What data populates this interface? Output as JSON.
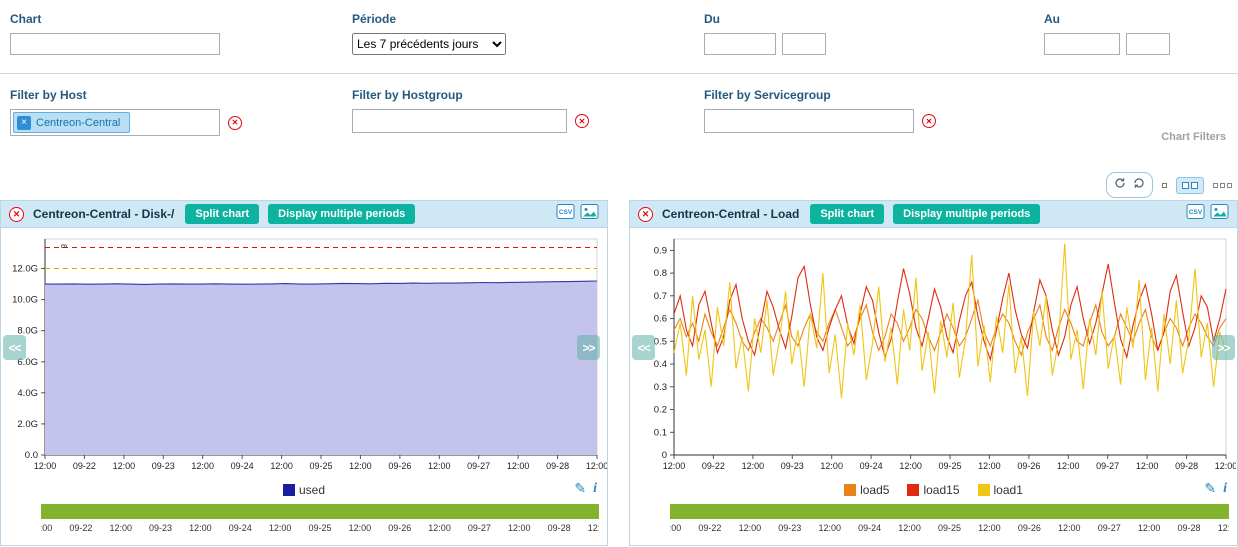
{
  "filters": {
    "chart": {
      "label": "Chart",
      "value": ""
    },
    "periode": {
      "label": "Période",
      "value": "Les 7 précédents jours"
    },
    "du": {
      "label": "Du",
      "date_value": "",
      "time_value": ""
    },
    "au": {
      "label": "Au",
      "date_value": "",
      "time_value": ""
    },
    "host": {
      "label": "Filter by Host",
      "tag": "Centreon-Central"
    },
    "hostgroup": {
      "label": "Filter by Hostgroup",
      "value": ""
    },
    "servicegroup": {
      "label": "Filter by Servicegroup",
      "value": ""
    },
    "section_label": "Chart Filters"
  },
  "icons": {
    "clear_x": "✕",
    "tag_x": "×",
    "paddle_left": "<<",
    "paddle_right": ">>",
    "pencil": "✎",
    "info": "i",
    "csv_label": "CSV"
  },
  "panels": [
    {
      "title": "Centreon-Central - Disk-/",
      "split_label": "Split chart",
      "multi_label": "Display multiple periods"
    },
    {
      "title": "Centreon-Central - Load",
      "split_label": "Split chart",
      "multi_label": "Display multiple periods"
    }
  ],
  "chart_data": [
    {
      "type": "area",
      "title": "Centreon-Central - Disk-/",
      "xlabel": "",
      "ylabel": "",
      "ylim": [
        0,
        13.9
      ],
      "yticks": {
        "values": [
          0,
          2,
          4,
          6,
          8,
          10,
          12
        ],
        "labels": [
          "0.0",
          "2.0G",
          "4.0G",
          "6.0G",
          "8.0G",
          "10.0G",
          "12.0G"
        ]
      },
      "x_labels": [
        "12:00",
        "09-22",
        "12:00",
        "09-23",
        "12:00",
        "09-24",
        "12:00",
        "09-25",
        "12:00",
        "09-26",
        "12:00",
        "09-27",
        "12:00",
        "09-28",
        "12:00"
      ],
      "annotation": "8",
      "thresholds": [
        {
          "name": "warning",
          "value": 12.0,
          "color": "#e8a000"
        },
        {
          "name": "critical",
          "value": 13.35,
          "color": "#e01010"
        }
      ],
      "series": [
        {
          "name": "used",
          "color": "#3434b4",
          "fill": "#c3c3ec",
          "values": [
            11.0,
            11.0,
            11.01,
            10.99,
            11.0,
            11.02,
            11.0,
            10.98,
            11.0,
            11.01,
            11.0,
            11.0,
            11.02,
            11.0,
            10.99,
            11.0,
            11.01,
            11.03,
            11.0,
            11.0,
            11.02,
            11.04,
            11.03,
            11.02,
            11.05,
            11.04,
            11.06,
            11.05,
            11.07,
            11.06,
            11.08,
            11.1,
            11.09,
            11.11,
            11.12,
            11.14,
            11.15,
            11.16,
            11.18,
            11.2
          ]
        }
      ],
      "legend": [
        {
          "label": "used",
          "color": "#1c1c9e"
        }
      ]
    },
    {
      "type": "line",
      "title": "Centreon-Central - Load",
      "xlabel": "",
      "ylabel": "",
      "ylim": [
        0,
        0.95
      ],
      "yticks": {
        "values": [
          0,
          0.1,
          0.2,
          0.3,
          0.4,
          0.5,
          0.6,
          0.7,
          0.8,
          0.9
        ],
        "labels": [
          "0",
          "0.1",
          "0.2",
          "0.3",
          "0.4",
          "0.5",
          "0.6",
          "0.7",
          "0.8",
          "0.9"
        ]
      },
      "x_labels": [
        "12:00",
        "09-22",
        "12:00",
        "09-23",
        "12:00",
        "09-24",
        "12:00",
        "09-25",
        "12:00",
        "09-26",
        "12:00",
        "09-27",
        "12:00",
        "09-28",
        "12:00"
      ],
      "series": [
        {
          "name": "load5",
          "color": "#e8831b",
          "values": [
            0.55,
            0.6,
            0.52,
            0.58,
            0.5,
            0.62,
            0.54,
            0.48,
            0.56,
            0.64,
            0.58,
            0.5,
            0.46,
            0.54,
            0.6,
            0.56,
            0.5,
            0.58,
            0.66,
            0.52,
            0.48,
            0.56,
            0.62,
            0.54,
            0.5,
            0.58,
            0.64,
            0.56,
            0.48,
            0.52,
            0.6,
            0.66,
            0.54,
            0.46,
            0.52,
            0.62,
            0.58,
            0.5,
            0.56,
            0.64,
            0.6,
            0.52,
            0.46,
            0.54,
            0.62,
            0.56,
            0.48,
            0.52,
            0.6,
            0.68,
            0.54,
            0.48,
            0.56,
            0.62,
            0.58,
            0.5,
            0.44,
            0.54,
            0.6,
            0.66,
            0.52,
            0.46,
            0.56,
            0.64,
            0.58,
            0.5,
            0.48,
            0.58,
            0.66,
            0.54,
            0.48,
            0.52,
            0.62,
            0.56,
            0.5,
            0.58,
            0.64,
            0.52,
            0.46,
            0.54,
            0.6,
            0.56,
            0.48,
            0.56,
            0.62,
            0.58,
            0.52,
            0.48,
            0.56,
            0.6
          ]
        },
        {
          "name": "load15",
          "color": "#e02a10",
          "values": [
            0.62,
            0.7,
            0.55,
            0.48,
            0.66,
            0.72,
            0.58,
            0.45,
            0.52,
            0.68,
            0.75,
            0.6,
            0.5,
            0.44,
            0.58,
            0.72,
            0.65,
            0.55,
            0.47,
            0.61,
            0.78,
            0.83,
            0.66,
            0.52,
            0.46,
            0.56,
            0.64,
            0.7,
            0.57,
            0.49,
            0.62,
            0.74,
            0.68,
            0.54,
            0.43,
            0.51,
            0.67,
            0.82,
            0.71,
            0.56,
            0.48,
            0.6,
            0.73,
            0.65,
            0.52,
            0.45,
            0.59,
            0.7,
            0.76,
            0.61,
            0.5,
            0.42,
            0.55,
            0.69,
            0.8,
            0.64,
            0.53,
            0.47,
            0.63,
            0.77,
            0.7,
            0.55,
            0.44,
            0.52,
            0.66,
            0.74,
            0.6,
            0.49,
            0.58,
            0.71,
            0.84,
            0.67,
            0.51,
            0.43,
            0.57,
            0.68,
            0.75,
            0.62,
            0.46,
            0.54,
            0.72,
            0.79,
            0.63,
            0.48,
            0.56,
            0.7,
            0.65,
            0.5,
            0.6,
            0.73
          ]
        },
        {
          "name": "load1",
          "color": "#f0c513",
          "values": [
            0.45,
            0.58,
            0.35,
            0.7,
            0.42,
            0.55,
            0.3,
            0.65,
            0.48,
            0.76,
            0.38,
            0.52,
            0.28,
            0.6,
            0.45,
            0.68,
            0.35,
            0.5,
            0.72,
            0.4,
            0.55,
            0.3,
            0.62,
            0.47,
            0.8,
            0.36,
            0.53,
            0.25,
            0.58,
            0.44,
            0.66,
            0.33,
            0.49,
            0.74,
            0.41,
            0.56,
            0.31,
            0.64,
            0.46,
            0.78,
            0.37,
            0.54,
            0.27,
            0.59,
            0.43,
            0.67,
            0.34,
            0.51,
            0.88,
            0.39,
            0.57,
            0.32,
            0.61,
            0.45,
            0.75,
            0.36,
            0.52,
            0.26,
            0.63,
            0.48,
            0.7,
            0.35,
            0.5,
            0.93,
            0.42,
            0.55,
            0.29,
            0.6,
            0.44,
            0.72,
            0.38,
            0.53,
            0.31,
            0.65,
            0.47,
            0.77,
            0.33,
            0.56,
            0.28,
            0.62,
            0.4,
            0.68,
            0.36,
            0.51,
            0.82,
            0.43,
            0.58,
            0.3,
            0.54,
            0.46
          ]
        }
      ],
      "legend": [
        {
          "label": "load5",
          "color": "#e8831b"
        },
        {
          "label": "load15",
          "color": "#e02a10"
        },
        {
          "label": "load1",
          "color": "#f0c513"
        }
      ]
    }
  ]
}
